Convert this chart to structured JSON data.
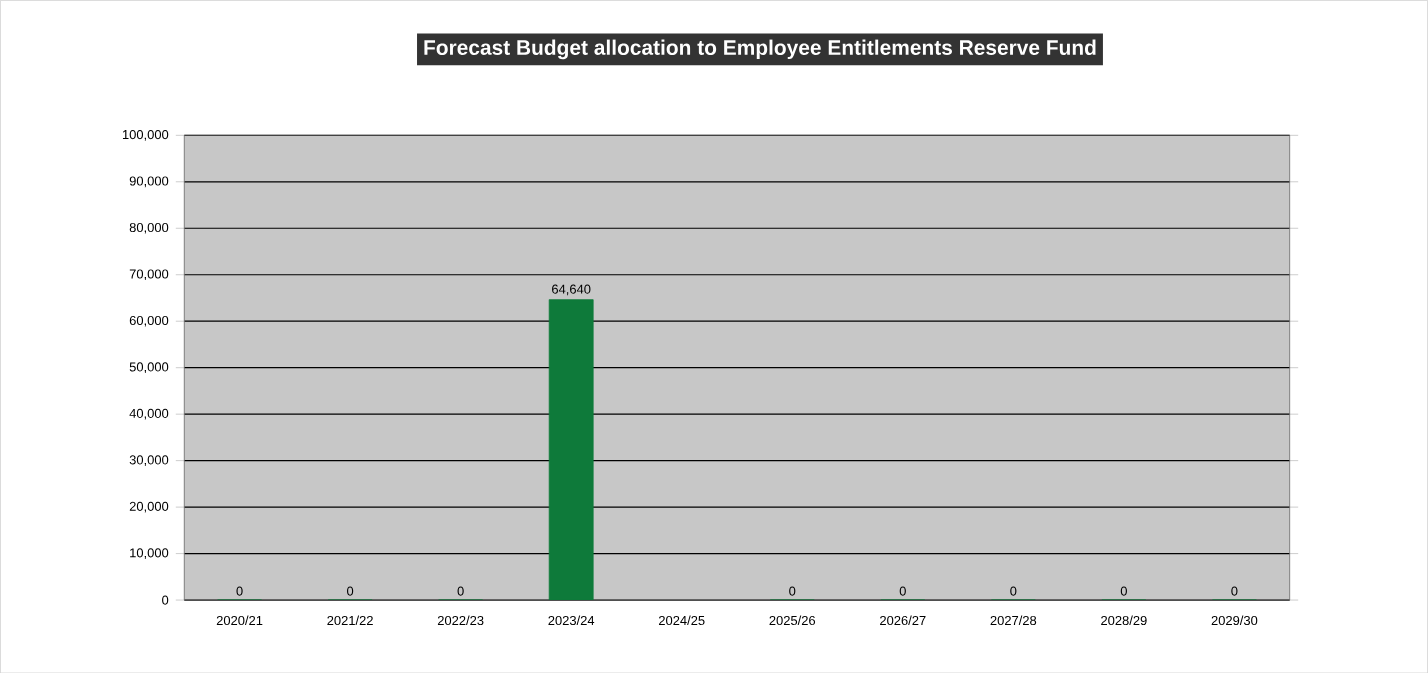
{
  "chart_data": {
    "type": "bar",
    "title": "Forecast Budget allocation to Employee Entitlements Reserve Fund",
    "categories": [
      "2020/21",
      "2021/22",
      "2022/23",
      "2023/24",
      "2024/25",
      "2025/26",
      "2026/27",
      "2027/28",
      "2028/29",
      "2029/30"
    ],
    "values": [
      0,
      0,
      0,
      64640,
      null,
      0,
      0,
      0,
      0,
      0
    ],
    "value_labels": [
      "0",
      "0",
      "0",
      "64,640",
      null,
      "0",
      "0",
      "0",
      "0",
      "0"
    ],
    "color": "#0e7a3a",
    "ylim": [
      0,
      100000
    ],
    "yticks": [
      0,
      {
        "value": 10000,
        "label": "10,000"
      },
      {
        "value": 20000,
        "label": "20,000"
      },
      {
        "value": 30000,
        "label": "30,000"
      },
      {
        "value": 40000,
        "label": "40,000"
      },
      {
        "value": 50000,
        "label": "50,000"
      },
      {
        "value": 60000,
        "label": "60,000"
      },
      {
        "value": 70000,
        "label": "70,000"
      },
      {
        "value": 80000,
        "label": "80,000"
      },
      {
        "value": 90000,
        "label": "90,000"
      },
      {
        "value": 100000,
        "label": "100,000"
      }
    ],
    "grid": "y"
  }
}
